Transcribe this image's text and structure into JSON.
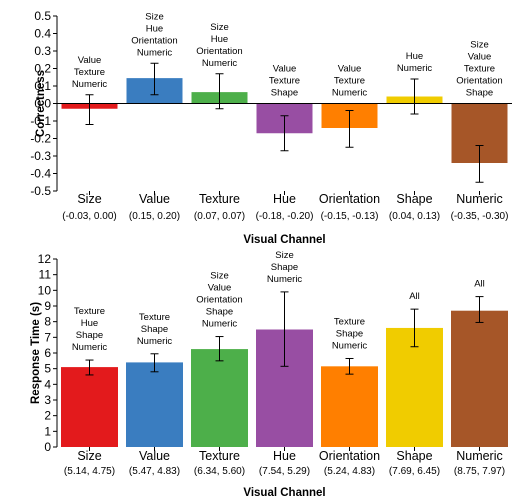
{
  "chart_data": [
    {
      "type": "bar",
      "xlabel": "Visual Channel",
      "ylabel": "Correctness",
      "ylim": [
        -0.5,
        0.5
      ],
      "yticks": [
        -0.5,
        -0.4,
        -0.3,
        -0.2,
        -0.1,
        0.0,
        0.1,
        0.2,
        0.3,
        0.4,
        0.5
      ],
      "ytick_labels": [
        "-0.5",
        "-0.4",
        "-0.3",
        "-0.2",
        "-0.1",
        "0.0",
        "0.1",
        "0.2",
        "0.3",
        "0.4",
        "0.5"
      ],
      "categories": [
        "Size",
        "Value",
        "Texture",
        "Hue",
        "Orientation",
        "Shape",
        "Numeric"
      ],
      "ranges": [
        "(-0.03, 0.00)",
        "(0.15, 0.20)",
        "(0.07, 0.07)",
        "(-0.18, -0.20)",
        "(-0.15, -0.13)",
        "(0.04, 0.13)",
        "(-0.35, -0.30)"
      ],
      "values": [
        -0.03,
        0.145,
        0.065,
        -0.17,
        -0.14,
        0.04,
        -0.34
      ],
      "error_low": [
        -0.12,
        0.05,
        -0.03,
        -0.27,
        -0.25,
        -0.06,
        -0.45
      ],
      "error_high": [
        0.05,
        0.23,
        0.17,
        -0.07,
        -0.04,
        0.14,
        -0.24
      ],
      "colors": [
        "#e31a1c",
        "#3a7dc0",
        "#4daf4a",
        "#984ea3",
        "#ff7f00",
        "#f0cc00",
        "#a65628"
      ],
      "annotations": [
        [
          "Value",
          "Texture",
          "Numeric"
        ],
        [
          "Size",
          "Hue",
          "Orientation",
          "Numeric"
        ],
        [
          "Size",
          "Hue",
          "Orientation",
          "Numeric"
        ],
        [
          "Value",
          "Texture",
          "Shape"
        ],
        [
          "Value",
          "Texture",
          "Numeric"
        ],
        [
          "Hue",
          "Numeric"
        ],
        [
          "Size",
          "Value",
          "Texture",
          "Orientation",
          "Shape"
        ]
      ],
      "grid": false,
      "legend": "none"
    },
    {
      "type": "bar",
      "xlabel": "Visual Channel",
      "ylabel": "Response Time (s)",
      "ylim": [
        0,
        12
      ],
      "yticks": [
        0,
        1,
        2,
        3,
        4,
        5,
        6,
        7,
        8,
        9,
        10,
        11,
        12
      ],
      "ytick_labels": [
        "0",
        "1",
        "2",
        "3",
        "4",
        "5",
        "6",
        "7",
        "8",
        "9",
        "10",
        "11",
        "12"
      ],
      "categories": [
        "Size",
        "Value",
        "Texture",
        "Hue",
        "Orientation",
        "Shape",
        "Numeric"
      ],
      "ranges": [
        "(5.14, 4.75)",
        "(5.47, 4.83)",
        "(6.34, 5.60)",
        "(7.54, 5.29)",
        "(5.24, 4.83)",
        "(7.69, 6.45)",
        "(8.75, 7.97)"
      ],
      "values": [
        5.1,
        5.4,
        6.25,
        7.5,
        5.15,
        7.6,
        8.7
      ],
      "error_low": [
        4.6,
        4.8,
        5.5,
        5.15,
        4.65,
        6.4,
        7.95
      ],
      "error_high": [
        5.55,
        5.95,
        7.05,
        9.9,
        5.65,
        8.8,
        9.6
      ],
      "colors": [
        "#e31a1c",
        "#3a7dc0",
        "#4daf4a",
        "#984ea3",
        "#ff7f00",
        "#f0cc00",
        "#a65628"
      ],
      "annotations": [
        [
          "Texture",
          "Hue",
          "Shape",
          "Numeric"
        ],
        [
          "Texture",
          "Shape",
          "Numeric"
        ],
        [
          "Size",
          "Value",
          "Orientation",
          "Shape",
          "Numeric"
        ],
        [
          "Size",
          "Shape",
          "Numeric"
        ],
        [
          "Texture",
          "Shape",
          "Numeric"
        ],
        [
          "All"
        ],
        [
          "All"
        ]
      ],
      "grid": false,
      "legend": "none"
    }
  ]
}
